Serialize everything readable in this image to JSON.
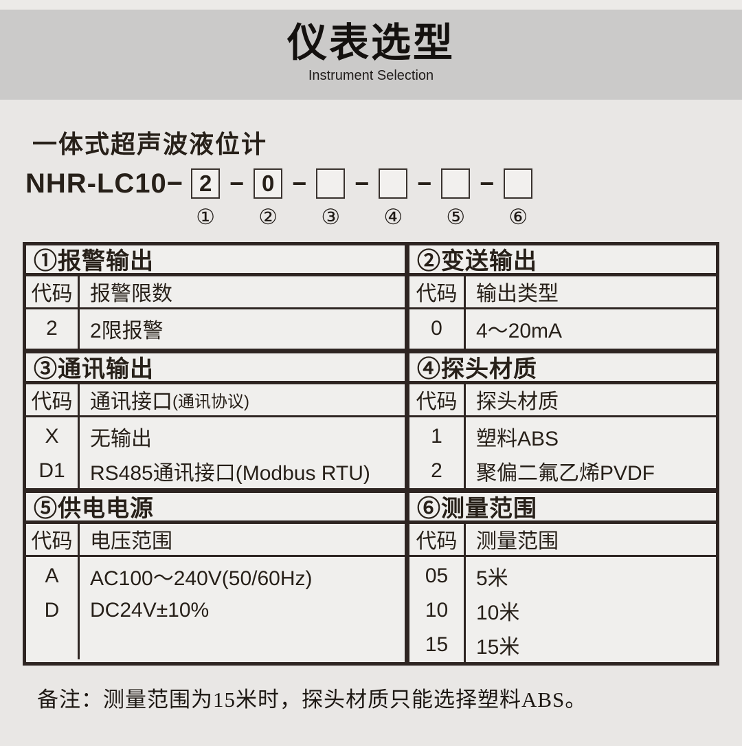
{
  "header": {
    "title": "仪表选型",
    "subtitle": "Instrument Selection"
  },
  "product": {
    "name": "一体式超声波液位计",
    "model_prefix": "NHR-LC10−",
    "separator": "−",
    "positions": [
      {
        "value": "2",
        "index": "①"
      },
      {
        "value": "0",
        "index": "②"
      },
      {
        "value": "",
        "index": "③"
      },
      {
        "value": "",
        "index": "④"
      },
      {
        "value": "",
        "index": "⑤"
      },
      {
        "value": "",
        "index": "⑥"
      }
    ]
  },
  "table": {
    "sections": [
      {
        "title": "①报警输出",
        "code_header": "代码",
        "desc_header": "报警限数",
        "rows": [
          {
            "code": "2",
            "desc": "2限报警"
          }
        ]
      },
      {
        "title": "②变送输出",
        "code_header": "代码",
        "desc_header": "输出类型",
        "rows": [
          {
            "code": "0",
            "desc": "4～20mA"
          }
        ]
      },
      {
        "title": "③通讯输出",
        "code_header": "代码",
        "desc_header": "通讯接口",
        "desc_header_note": "(通讯协议)",
        "rows": [
          {
            "code": "X",
            "desc": "无输出"
          },
          {
            "code": "D1",
            "desc": "RS485通讯接口(Modbus RTU)"
          }
        ]
      },
      {
        "title": "④探头材质",
        "code_header": "代码",
        "desc_header": "探头材质",
        "rows": [
          {
            "code": "1",
            "desc": "塑料ABS"
          },
          {
            "code": "2",
            "desc": "聚偏二氟乙烯PVDF"
          }
        ]
      },
      {
        "title": "⑤供电电源",
        "code_header": "代码",
        "desc_header": "电压范围",
        "rows": [
          {
            "code": "A",
            "desc": "AC100～240V(50/60Hz)"
          },
          {
            "code": "D",
            "desc": "DC24V±10%"
          }
        ]
      },
      {
        "title": "⑥测量范围",
        "code_header": "代码",
        "desc_header": "测量范围",
        "rows": [
          {
            "code": "05",
            "desc": "5米"
          },
          {
            "code": "10",
            "desc": "10米"
          },
          {
            "code": "15",
            "desc": "15米"
          }
        ]
      }
    ]
  },
  "note": "备注：测量范围为15米时，探头材质只能选择塑料ABS。",
  "colors": {
    "page_bg": "#e9e7e5",
    "strip_bg": "#eceae8",
    "band_bg": "#cbcac9",
    "cell_bg": "#f0efed",
    "box_bg": "#f2f0ee",
    "border": "#2e2522",
    "text": "#272019"
  }
}
